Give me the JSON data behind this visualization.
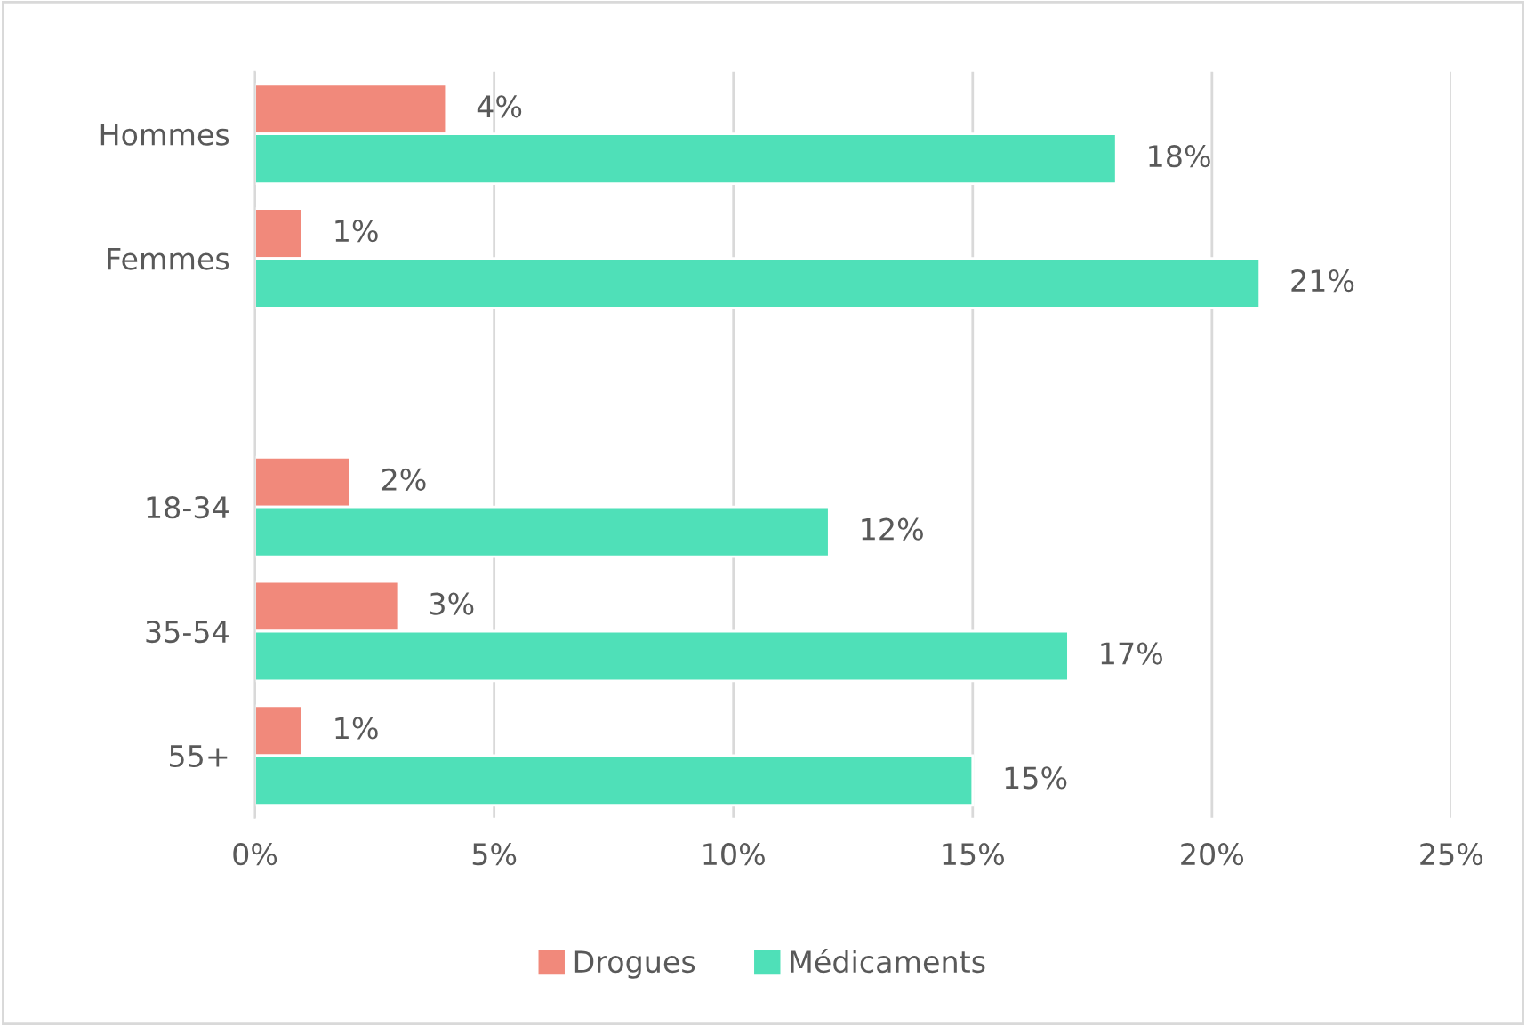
{
  "chart_data": {
    "type": "bar",
    "orientation": "horizontal",
    "categories": [
      "Hommes",
      "Femmes",
      null,
      "18-34",
      "35-54",
      "55+"
    ],
    "series": [
      {
        "name": "Drogues",
        "color": "#f1897b",
        "values": [
          4,
          1,
          null,
          2,
          3,
          1
        ],
        "value_labels": [
          "4%",
          "1%",
          null,
          "2%",
          "3%",
          "1%"
        ]
      },
      {
        "name": "Médicaments",
        "color": "#4fe0b8",
        "values": [
          18,
          21,
          null,
          12,
          17,
          15
        ],
        "value_labels": [
          "18%",
          "21%",
          null,
          "12%",
          "17%",
          "15%"
        ]
      }
    ],
    "xlim": [
      0,
      25
    ],
    "xticks": [
      {
        "value": 0,
        "label": "0%"
      },
      {
        "value": 5,
        "label": "5%"
      },
      {
        "value": 10,
        "label": "10%"
      },
      {
        "value": 15,
        "label": "15%"
      },
      {
        "value": 20,
        "label": "20%"
      },
      {
        "value": 25,
        "label": "25%"
      }
    ],
    "grid": "x",
    "legend": "bottom"
  }
}
